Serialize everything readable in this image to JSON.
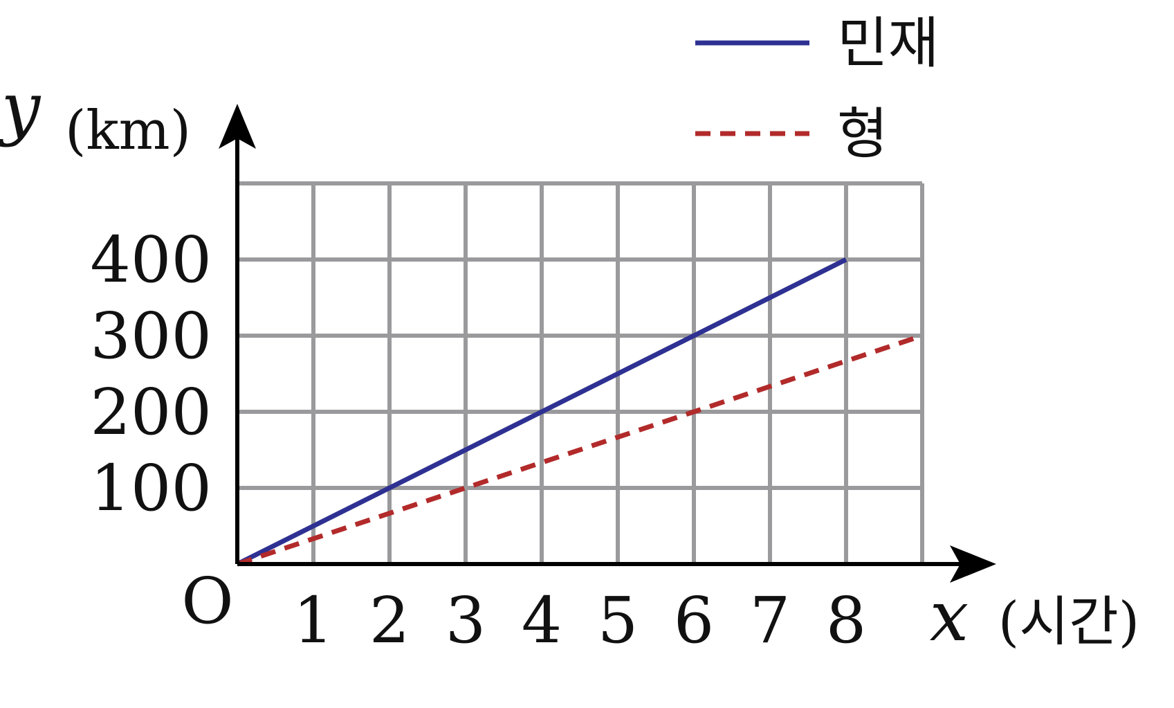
{
  "chart_data": {
    "type": "line",
    "origin_label": "O",
    "x_var": "x",
    "x_unit": "(시간)",
    "y_var": "y",
    "y_unit": "(km)",
    "xlim": [
      0,
      9
    ],
    "ylim": [
      0,
      500
    ],
    "x_ticks": [
      1,
      2,
      3,
      4,
      5,
      6,
      7,
      8
    ],
    "y_ticks": [
      100,
      200,
      300,
      400
    ],
    "grid": true,
    "legend_position": "top-right",
    "series": [
      {
        "name": "민재",
        "color": "#2e3192",
        "dash": "solid",
        "x": [
          0,
          8
        ],
        "y": [
          0,
          400
        ]
      },
      {
        "name": "형",
        "color": "#b22a2a",
        "dash": "dashed",
        "x": [
          0,
          9
        ],
        "y": [
          0,
          300
        ]
      }
    ]
  }
}
